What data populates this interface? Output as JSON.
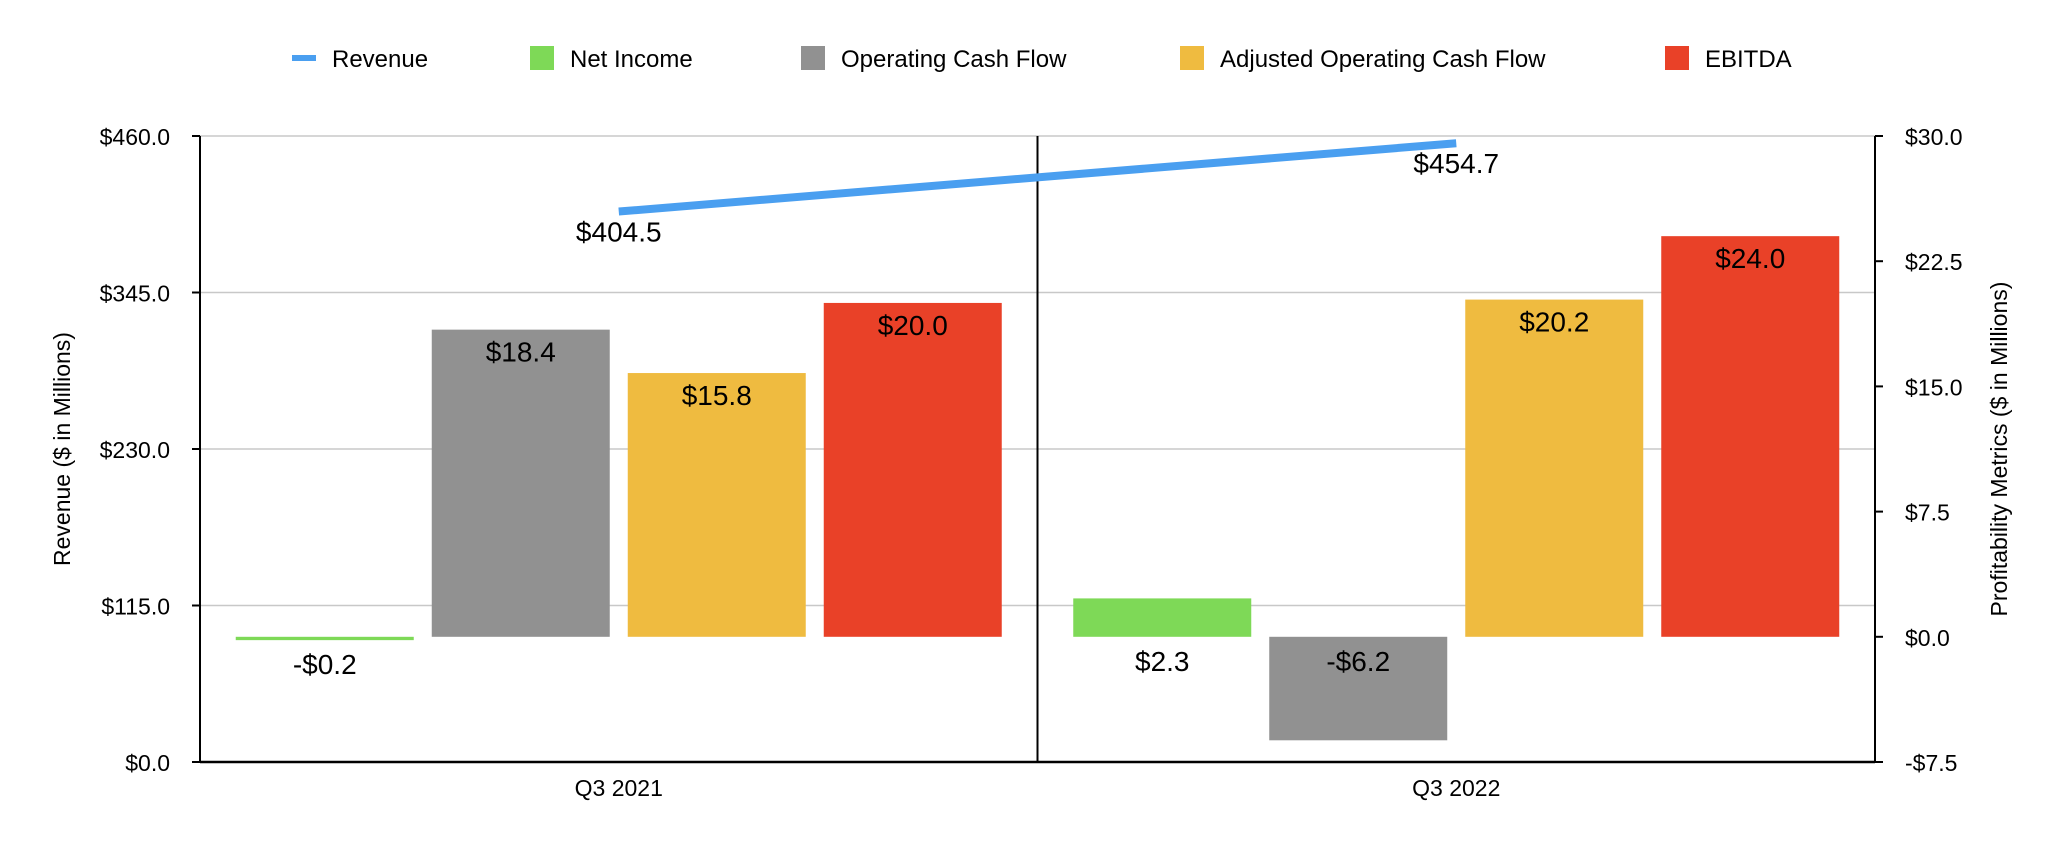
{
  "chart_data": {
    "type": "bar",
    "categories": [
      "Q3 2021",
      "Q3 2022"
    ],
    "legend": {
      "placement": "top-center",
      "entries": [
        {
          "label": "Revenue",
          "marker": "line",
          "color": "#4A9FF0"
        },
        {
          "label": "Net Income",
          "marker": "square",
          "color": "#7ED957"
        },
        {
          "label": "Operating Cash Flow",
          "marker": "square",
          "color": "#919191"
        },
        {
          "label": "Adjusted Operating Cash Flow",
          "marker": "square",
          "color": "#EFBB40"
        },
        {
          "label": "EBITDA",
          "marker": "square",
          "color": "#E94128"
        }
      ]
    },
    "line_series": {
      "name": "Revenue",
      "axis": "left",
      "values": [
        404.5,
        454.7
      ],
      "labels": [
        "$404.5",
        "$454.7"
      ],
      "color": "#4A9FF0"
    },
    "series": [
      {
        "name": "Net Income",
        "axis": "right",
        "values": [
          -0.2,
          2.3
        ],
        "labels": [
          "-$0.2",
          "$2.3"
        ],
        "color": "#7ED957"
      },
      {
        "name": "Operating Cash Flow",
        "axis": "right",
        "values": [
          18.4,
          -6.2
        ],
        "labels": [
          "$18.4",
          "-$6.2"
        ],
        "color": "#919191"
      },
      {
        "name": "Adjusted Operating Cash Flow",
        "axis": "right",
        "values": [
          15.8,
          20.2
        ],
        "labels": [
          "$15.8",
          "$20.2"
        ],
        "color": "#EFBB40"
      },
      {
        "name": "EBITDA",
        "axis": "right",
        "values": [
          20.0,
          24.0
        ],
        "labels": [
          "$20.0",
          "$24.0"
        ],
        "color": "#E94128"
      }
    ],
    "left_axis": {
      "label": "Revenue ($ in Millions)",
      "ylim": [
        0,
        460
      ],
      "ticks": [
        0,
        115,
        230,
        345,
        460
      ],
      "tick_labels": [
        "$0.0",
        "$115.0",
        "$230.0",
        "$345.0",
        "$460.0"
      ]
    },
    "right_axis": {
      "label": "Profitability Metrics ($ in Millions)",
      "ylim": [
        -7.5,
        30
      ],
      "ticks": [
        -7.5,
        0,
        7.5,
        15,
        22.5,
        30
      ],
      "tick_labels": [
        "-$7.5",
        "$0.0",
        "$7.5",
        "$15.0",
        "$22.5",
        "$30.0"
      ]
    },
    "grid": true,
    "title": ""
  }
}
